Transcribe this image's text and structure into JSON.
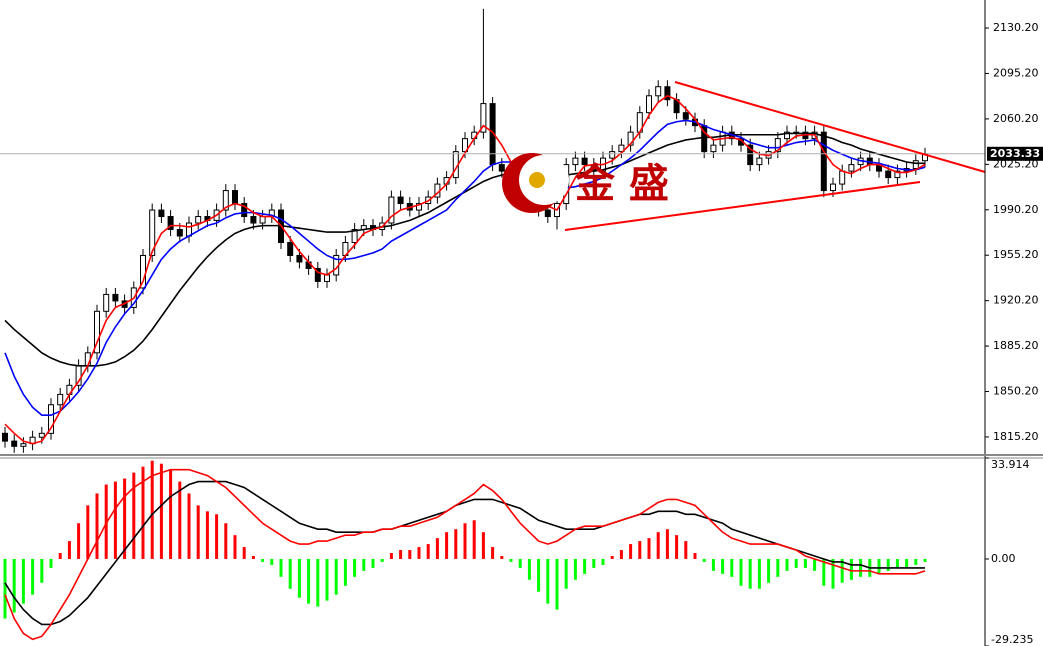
{
  "chart_data": [
    {
      "type": "candlestick",
      "open": [
        1818,
        1812,
        1808,
        1810,
        1815,
        1818,
        1840,
        1848,
        1855,
        1870,
        1880,
        1912,
        1925,
        1920,
        1915,
        1930,
        1955,
        1990,
        1985,
        1975,
        1970,
        1980,
        1985,
        1982,
        1990,
        2005,
        1995,
        1985,
        1980,
        1985,
        1990,
        1965,
        1955,
        1950,
        1945,
        1935,
        1940,
        1955,
        1965,
        1975,
        1978,
        1975,
        1980,
        2000,
        1995,
        1990,
        1995,
        2000,
        2010,
        2015,
        2035,
        2045,
        2050,
        2072,
        2025,
        2020,
        2015,
        2010,
        2005,
        1990,
        1985,
        1995,
        2025,
        2030,
        2025,
        2020,
        2030,
        2035,
        2040,
        2050,
        2065,
        2078,
        2085,
        2075,
        2065,
        2060,
        2055,
        2035,
        2040,
        2050,
        2045,
        2040,
        2025,
        2030,
        2035,
        2045,
        2050,
        2050,
        2045,
        2050,
        2005,
        2010,
        2020,
        2025,
        2030,
        2025,
        2020,
        2015,
        2020,
        2022,
        2028
      ],
      "high": [
        1823,
        1817,
        1815,
        1820,
        1823,
        1845,
        1853,
        1860,
        1875,
        1885,
        1917,
        1930,
        1930,
        1925,
        1935,
        1960,
        1995,
        1995,
        1990,
        1980,
        1985,
        1990,
        1990,
        1995,
        2010,
        2010,
        2000,
        1990,
        1990,
        1995,
        1995,
        1970,
        1960,
        1955,
        1950,
        1945,
        1960,
        1970,
        1980,
        1983,
        1983,
        1985,
        2005,
        2005,
        2000,
        2000,
        2005,
        2015,
        2020,
        2040,
        2050,
        2055,
        2145,
        2077,
        2030,
        2025,
        2020,
        2015,
        2010,
        1995,
        2000,
        2030,
        2035,
        2035,
        2030,
        2035,
        2040,
        2045,
        2055,
        2070,
        2083,
        2090,
        2090,
        2080,
        2070,
        2065,
        2060,
        2045,
        2055,
        2055,
        2050,
        2045,
        2035,
        2040,
        2050,
        2055,
        2055,
        2055,
        2055,
        2055,
        2015,
        2025,
        2030,
        2035,
        2035,
        2030,
        2025,
        2025,
        2027,
        2033,
        2038
      ],
      "low": [
        1807,
        1803,
        1803,
        1805,
        1810,
        1813,
        1835,
        1843,
        1850,
        1865,
        1875,
        1907,
        1915,
        1910,
        1910,
        1925,
        1950,
        1980,
        1970,
        1965,
        1965,
        1975,
        1977,
        1977,
        1985,
        1990,
        1980,
        1975,
        1975,
        1980,
        1960,
        1950,
        1945,
        1940,
        1930,
        1930,
        1935,
        1950,
        1960,
        1970,
        1970,
        1970,
        1975,
        1990,
        1985,
        1985,
        1990,
        1995,
        2005,
        2010,
        2030,
        2040,
        2045,
        2020,
        2015,
        2010,
        2005,
        2000,
        1985,
        1980,
        1975,
        1990,
        2020,
        2020,
        2015,
        2015,
        2025,
        2030,
        2035,
        2045,
        2060,
        2073,
        2070,
        2060,
        2055,
        2050,
        2030,
        2030,
        2035,
        2040,
        2035,
        2020,
        2020,
        2025,
        2030,
        2040,
        2045,
        2040,
        2040,
        2000,
        2000,
        2005,
        2015,
        2020,
        2020,
        2015,
        2010,
        2010,
        2015,
        2017,
        2023
      ],
      "close": [
        1812,
        1808,
        1810,
        1815,
        1818,
        1840,
        1848,
        1855,
        1870,
        1880,
        1912,
        1925,
        1920,
        1915,
        1930,
        1955,
        1990,
        1985,
        1975,
        1970,
        1980,
        1985,
        1982,
        1990,
        2005,
        1995,
        1985,
        1980,
        1985,
        1990,
        1965,
        1955,
        1950,
        1945,
        1935,
        1940,
        1955,
        1965,
        1975,
        1978,
        1975,
        1980,
        2000,
        1995,
        1990,
        1995,
        2000,
        2010,
        2015,
        2035,
        2045,
        2050,
        2072,
        2025,
        2020,
        2015,
        2010,
        2005,
        1990,
        1985,
        1995,
        2025,
        2030,
        2025,
        2020,
        2030,
        2035,
        2040,
        2050,
        2065,
        2078,
        2085,
        2075,
        2065,
        2060,
        2055,
        2035,
        2040,
        2050,
        2045,
        2040,
        2025,
        2030,
        2035,
        2045,
        2050,
        2050,
        2045,
        2050,
        2005,
        2010,
        2020,
        2025,
        2030,
        2025,
        2020,
        2015,
        2020,
        2022,
        2028,
        2033.3
      ],
      "lines": [
        {
          "color": "#000000",
          "values": [
            1905,
            1898,
            1892,
            1886,
            1880,
            1876,
            1873,
            1871,
            1870,
            1870,
            1870,
            1871,
            1873,
            1877,
            1882,
            1889,
            1898,
            1908,
            1918,
            1928,
            1937,
            1946,
            1954,
            1961,
            1967,
            1972,
            1975,
            1977,
            1978,
            1978,
            1978,
            1977,
            1976,
            1975,
            1974,
            1973,
            1973,
            1973,
            1974,
            1975,
            1976,
            1977,
            1978,
            1980,
            1982,
            1985,
            1988,
            1992,
            1996,
            2000,
            2004,
            2008,
            2012,
            2015,
            2017,
            2018,
            2018,
            2018,
            2017,
            2016,
            2016,
            2017,
            2018,
            2019,
            2020,
            2021,
            2023,
            2025,
            2028,
            2031,
            2034,
            2037,
            2040,
            2042,
            2044,
            2045,
            2046,
            2046,
            2047,
            2048,
            2048,
            2048,
            2048,
            2048,
            2048,
            2049,
            2049,
            2049,
            2049,
            2047,
            2045,
            2042,
            2040,
            2037,
            2035,
            2033,
            2031,
            2029,
            2027,
            2026,
            2026
          ]
        },
        {
          "color": "#0000ff",
          "values": [
            1880,
            1862,
            1848,
            1838,
            1832,
            1832,
            1835,
            1842,
            1850,
            1860,
            1872,
            1888,
            1900,
            1910,
            1918,
            1928,
            1940,
            1952,
            1960,
            1966,
            1970,
            1974,
            1978,
            1980,
            1984,
            1987,
            1988,
            1988,
            1987,
            1986,
            1983,
            1978,
            1972,
            1966,
            1960,
            1955,
            1952,
            1952,
            1953,
            1955,
            1957,
            1960,
            1966,
            1970,
            1974,
            1978,
            1982,
            1986,
            1990,
            1998,
            2005,
            2012,
            2020,
            2025,
            2027,
            2027,
            2025,
            2022,
            2018,
            2013,
            2008,
            2007,
            2008,
            2010,
            2012,
            2015,
            2020,
            2025,
            2030,
            2036,
            2043,
            2050,
            2056,
            2058,
            2059,
            2058,
            2055,
            2052,
            2050,
            2048,
            2046,
            2042,
            2040,
            2038,
            2038,
            2040,
            2042,
            2043,
            2044,
            2040,
            2036,
            2033,
            2030,
            2028,
            2027,
            2026,
            2024,
            2022,
            2021,
            2021,
            2023
          ]
        },
        {
          "color": "#ff0000",
          "values": [
            1825,
            1818,
            1812,
            1810,
            1812,
            1822,
            1835,
            1848,
            1858,
            1870,
            1888,
            1905,
            1915,
            1918,
            1922,
            1935,
            1958,
            1972,
            1978,
            1978,
            1977,
            1979,
            1982,
            1986,
            1992,
            1995,
            1993,
            1988,
            1985,
            1985,
            1978,
            1968,
            1958,
            1950,
            1942,
            1940,
            1945,
            1955,
            1963,
            1972,
            1975,
            1977,
            1985,
            1990,
            1992,
            1994,
            1997,
            2003,
            2010,
            2022,
            2034,
            2045,
            2055,
            2050,
            2040,
            2027,
            2017,
            2010,
            2002,
            1993,
            1990,
            2002,
            2015,
            2024,
            2025,
            2025,
            2028,
            2034,
            2041,
            2050,
            2063,
            2073,
            2078,
            2075,
            2068,
            2060,
            2050,
            2044,
            2045,
            2046,
            2044,
            2037,
            2033,
            2032,
            2036,
            2042,
            2047,
            2048,
            2048,
            2035,
            2025,
            2020,
            2018,
            2022,
            2025,
            2025,
            2022,
            2019,
            2019,
            2021,
            2025
          ]
        }
      ],
      "ylim": [
        1801.3,
        2151.8
      ],
      "yticks": [
        {
          "value": 2130.2,
          "label": "2130.20"
        },
        {
          "value": 2095.2,
          "label": "2095.20"
        },
        {
          "value": 2060.2,
          "label": "2060.20"
        },
        {
          "value": 2025.2,
          "label": "2025.20"
        },
        {
          "value": 1990.2,
          "label": "1990.20"
        },
        {
          "value": 1955.2,
          "label": "1955.20"
        },
        {
          "value": 1920.2,
          "label": "1920.20"
        },
        {
          "value": 1885.2,
          "label": "1885.20"
        },
        {
          "value": 1850.2,
          "label": "1850.20"
        },
        {
          "value": 1815.2,
          "label": "1815.20"
        }
      ],
      "last_price": {
        "value": 2033.33,
        "label": "2033.33"
      },
      "logo_text": "金 盛"
    },
    {
      "type": "macd",
      "histogram": [
        -20,
        -18,
        -15,
        -12,
        -8,
        -3,
        2,
        6,
        12,
        18,
        22,
        25,
        26,
        27,
        29,
        31,
        33,
        32,
        30,
        26,
        22,
        18,
        16,
        15,
        12,
        8,
        4,
        1,
        -1,
        -2,
        -6,
        -10,
        -13,
        -15,
        -16,
        -14,
        -12,
        -9,
        -6,
        -4,
        -3,
        -1,
        2,
        3,
        3,
        4,
        5,
        7,
        9,
        10,
        12,
        13,
        9,
        4,
        1,
        -1,
        -3,
        -7,
        -11,
        -15,
        -17,
        -10,
        -7,
        -5,
        -3,
        -2,
        1,
        3,
        5,
        6,
        7,
        9,
        10,
        8,
        6,
        2,
        -1,
        -4,
        -5,
        -6,
        -9,
        -10,
        -10,
        -8,
        -6,
        -4,
        -3,
        -3,
        -4,
        -9,
        -10,
        -8,
        -7,
        -6,
        -6,
        -5,
        -4,
        -3,
        -3,
        -2,
        -1
      ],
      "up_color": "#ff0000",
      "down_color": "#00ff00",
      "lines": [
        {
          "color": "#000000",
          "values": [
            -8,
            -13,
            -17,
            -20,
            -22,
            -22,
            -21,
            -19,
            -16,
            -13,
            -9,
            -5,
            -1,
            3,
            7,
            11,
            15,
            18,
            21,
            23,
            25,
            26,
            26,
            26,
            26,
            25,
            24,
            22,
            20,
            18,
            16,
            14,
            12,
            11,
            10,
            10,
            9,
            9,
            9,
            9,
            9,
            10,
            10,
            11,
            12,
            13,
            14,
            15,
            16,
            18,
            19,
            20,
            20,
            20,
            19,
            18,
            17,
            15,
            13,
            12,
            11,
            10,
            10,
            10,
            10,
            11,
            12,
            13,
            14,
            15,
            15,
            16,
            16,
            16,
            15,
            15,
            14,
            13,
            12,
            10,
            9,
            8,
            7,
            6,
            5,
            4,
            3,
            2,
            1,
            0,
            -1,
            -1,
            -2,
            -2,
            -3,
            -3,
            -3,
            -3,
            -3,
            -3,
            -3
          ]
        },
        {
          "color": "#ff0000",
          "values": [
            -12,
            -20,
            -25,
            -27,
            -26,
            -22,
            -17,
            -12,
            -6,
            0,
            6,
            12,
            17,
            21,
            24,
            26,
            28,
            29,
            30,
            30,
            30,
            29,
            28,
            26,
            24,
            21,
            18,
            15,
            12,
            10,
            8,
            6,
            5,
            5,
            6,
            6,
            7,
            8,
            8,
            9,
            9,
            10,
            10,
            11,
            11,
            12,
            13,
            14,
            16,
            18,
            20,
            22,
            25,
            23,
            20,
            16,
            12,
            9,
            6,
            5,
            6,
            8,
            10,
            11,
            11,
            11,
            12,
            13,
            14,
            15,
            17,
            19,
            20,
            20,
            19,
            18,
            15,
            12,
            9,
            7,
            6,
            5,
            5,
            5,
            5,
            4,
            3,
            1,
            0,
            -1,
            -2,
            -3,
            -4,
            -4,
            -4,
            -5,
            -5,
            -5,
            -5,
            -5,
            -4
          ]
        }
      ],
      "ylim": [
        -29.235,
        33.914
      ],
      "yticks": [
        33.914,
        {
          "value": 0,
          "label": "0.00"
        },
        -29.235
      ]
    }
  ]
}
